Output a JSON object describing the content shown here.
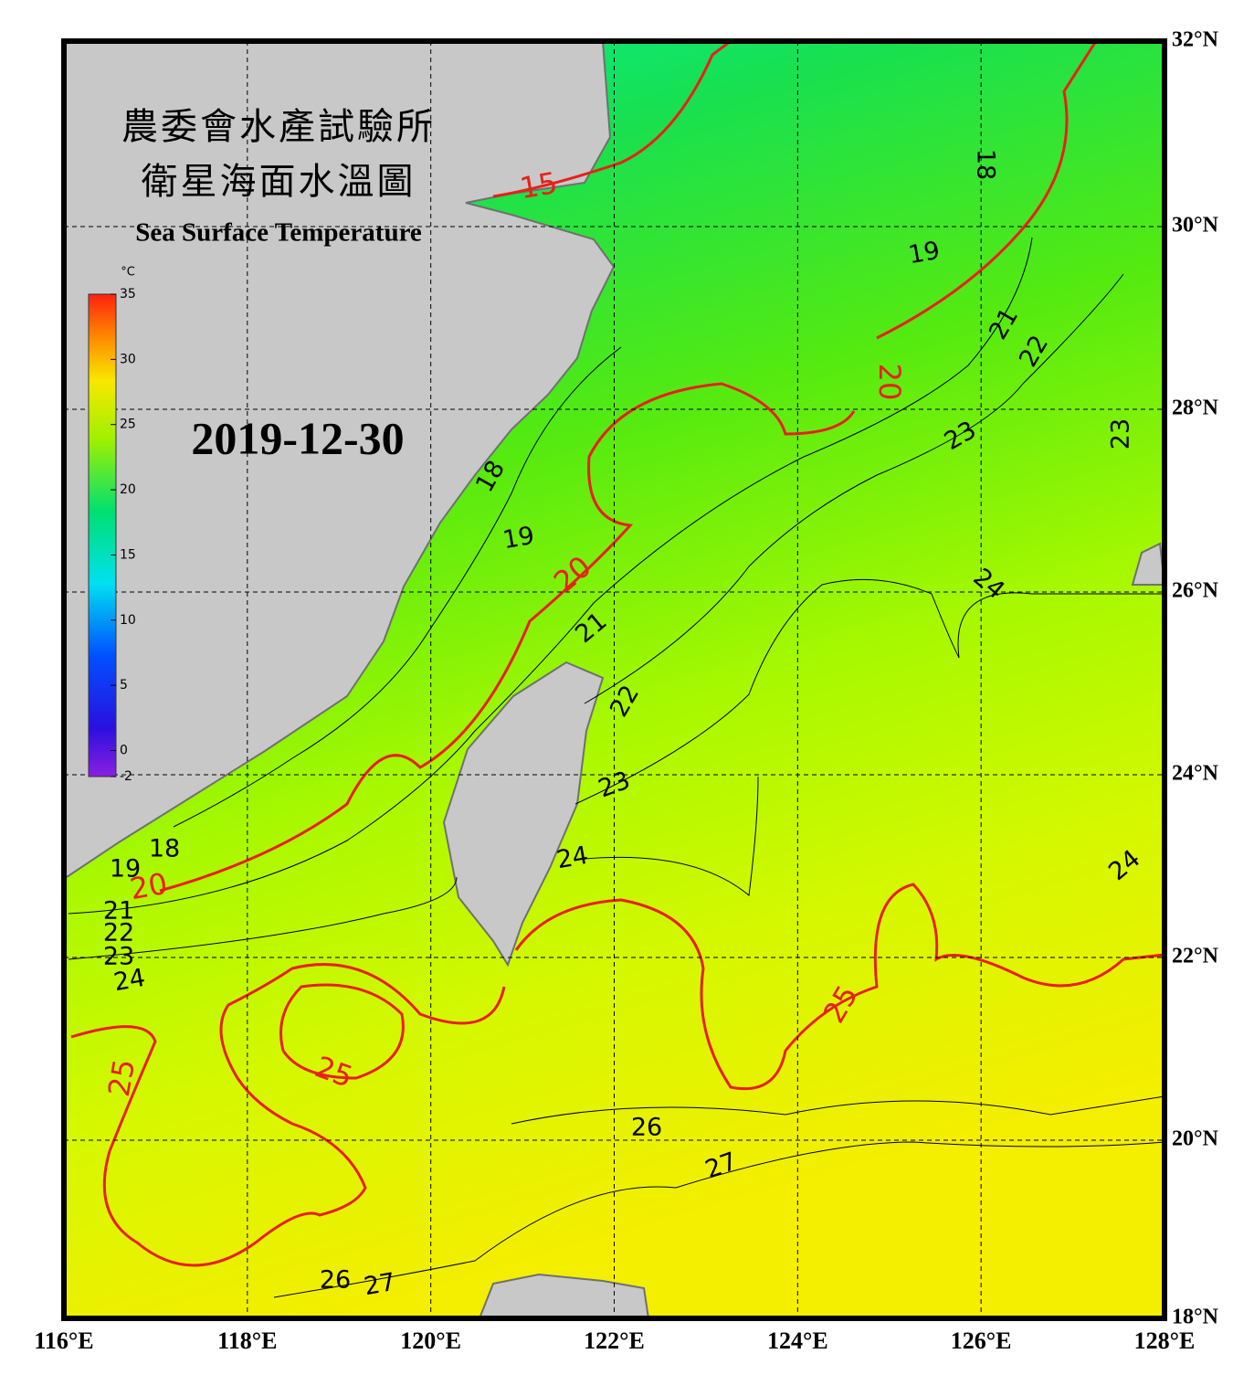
{
  "header": {
    "title_lines": [
      "農委會水產試驗所",
      "衛星海面水溫圖"
    ],
    "subtitle": "Sea Surface Temperature"
  },
  "date": "2019-12-30",
  "colorbar": {
    "unit": "°C",
    "ticks": [
      -2,
      0,
      5,
      10,
      15,
      20,
      25,
      30,
      35
    ]
  },
  "axes": {
    "lon_labels": [
      "116°E",
      "118°E",
      "120°E",
      "122°E",
      "124°E",
      "126°E",
      "128°E"
    ],
    "lat_labels": [
      "32°N",
      "30°N",
      "28°N",
      "26°N",
      "24°N",
      "22°N",
      "20°N",
      "18°N"
    ]
  },
  "contour_labels": [
    "15",
    "18",
    "19",
    "20",
    "21",
    "22",
    "23",
    "23",
    "18",
    "19",
    "20",
    "21",
    "24",
    "22",
    "23",
    "24",
    "24",
    "18",
    "19",
    "20",
    "21",
    "22",
    "23",
    "24",
    "25",
    "25",
    "25",
    "26",
    "27",
    "26",
    "27"
  ]
}
